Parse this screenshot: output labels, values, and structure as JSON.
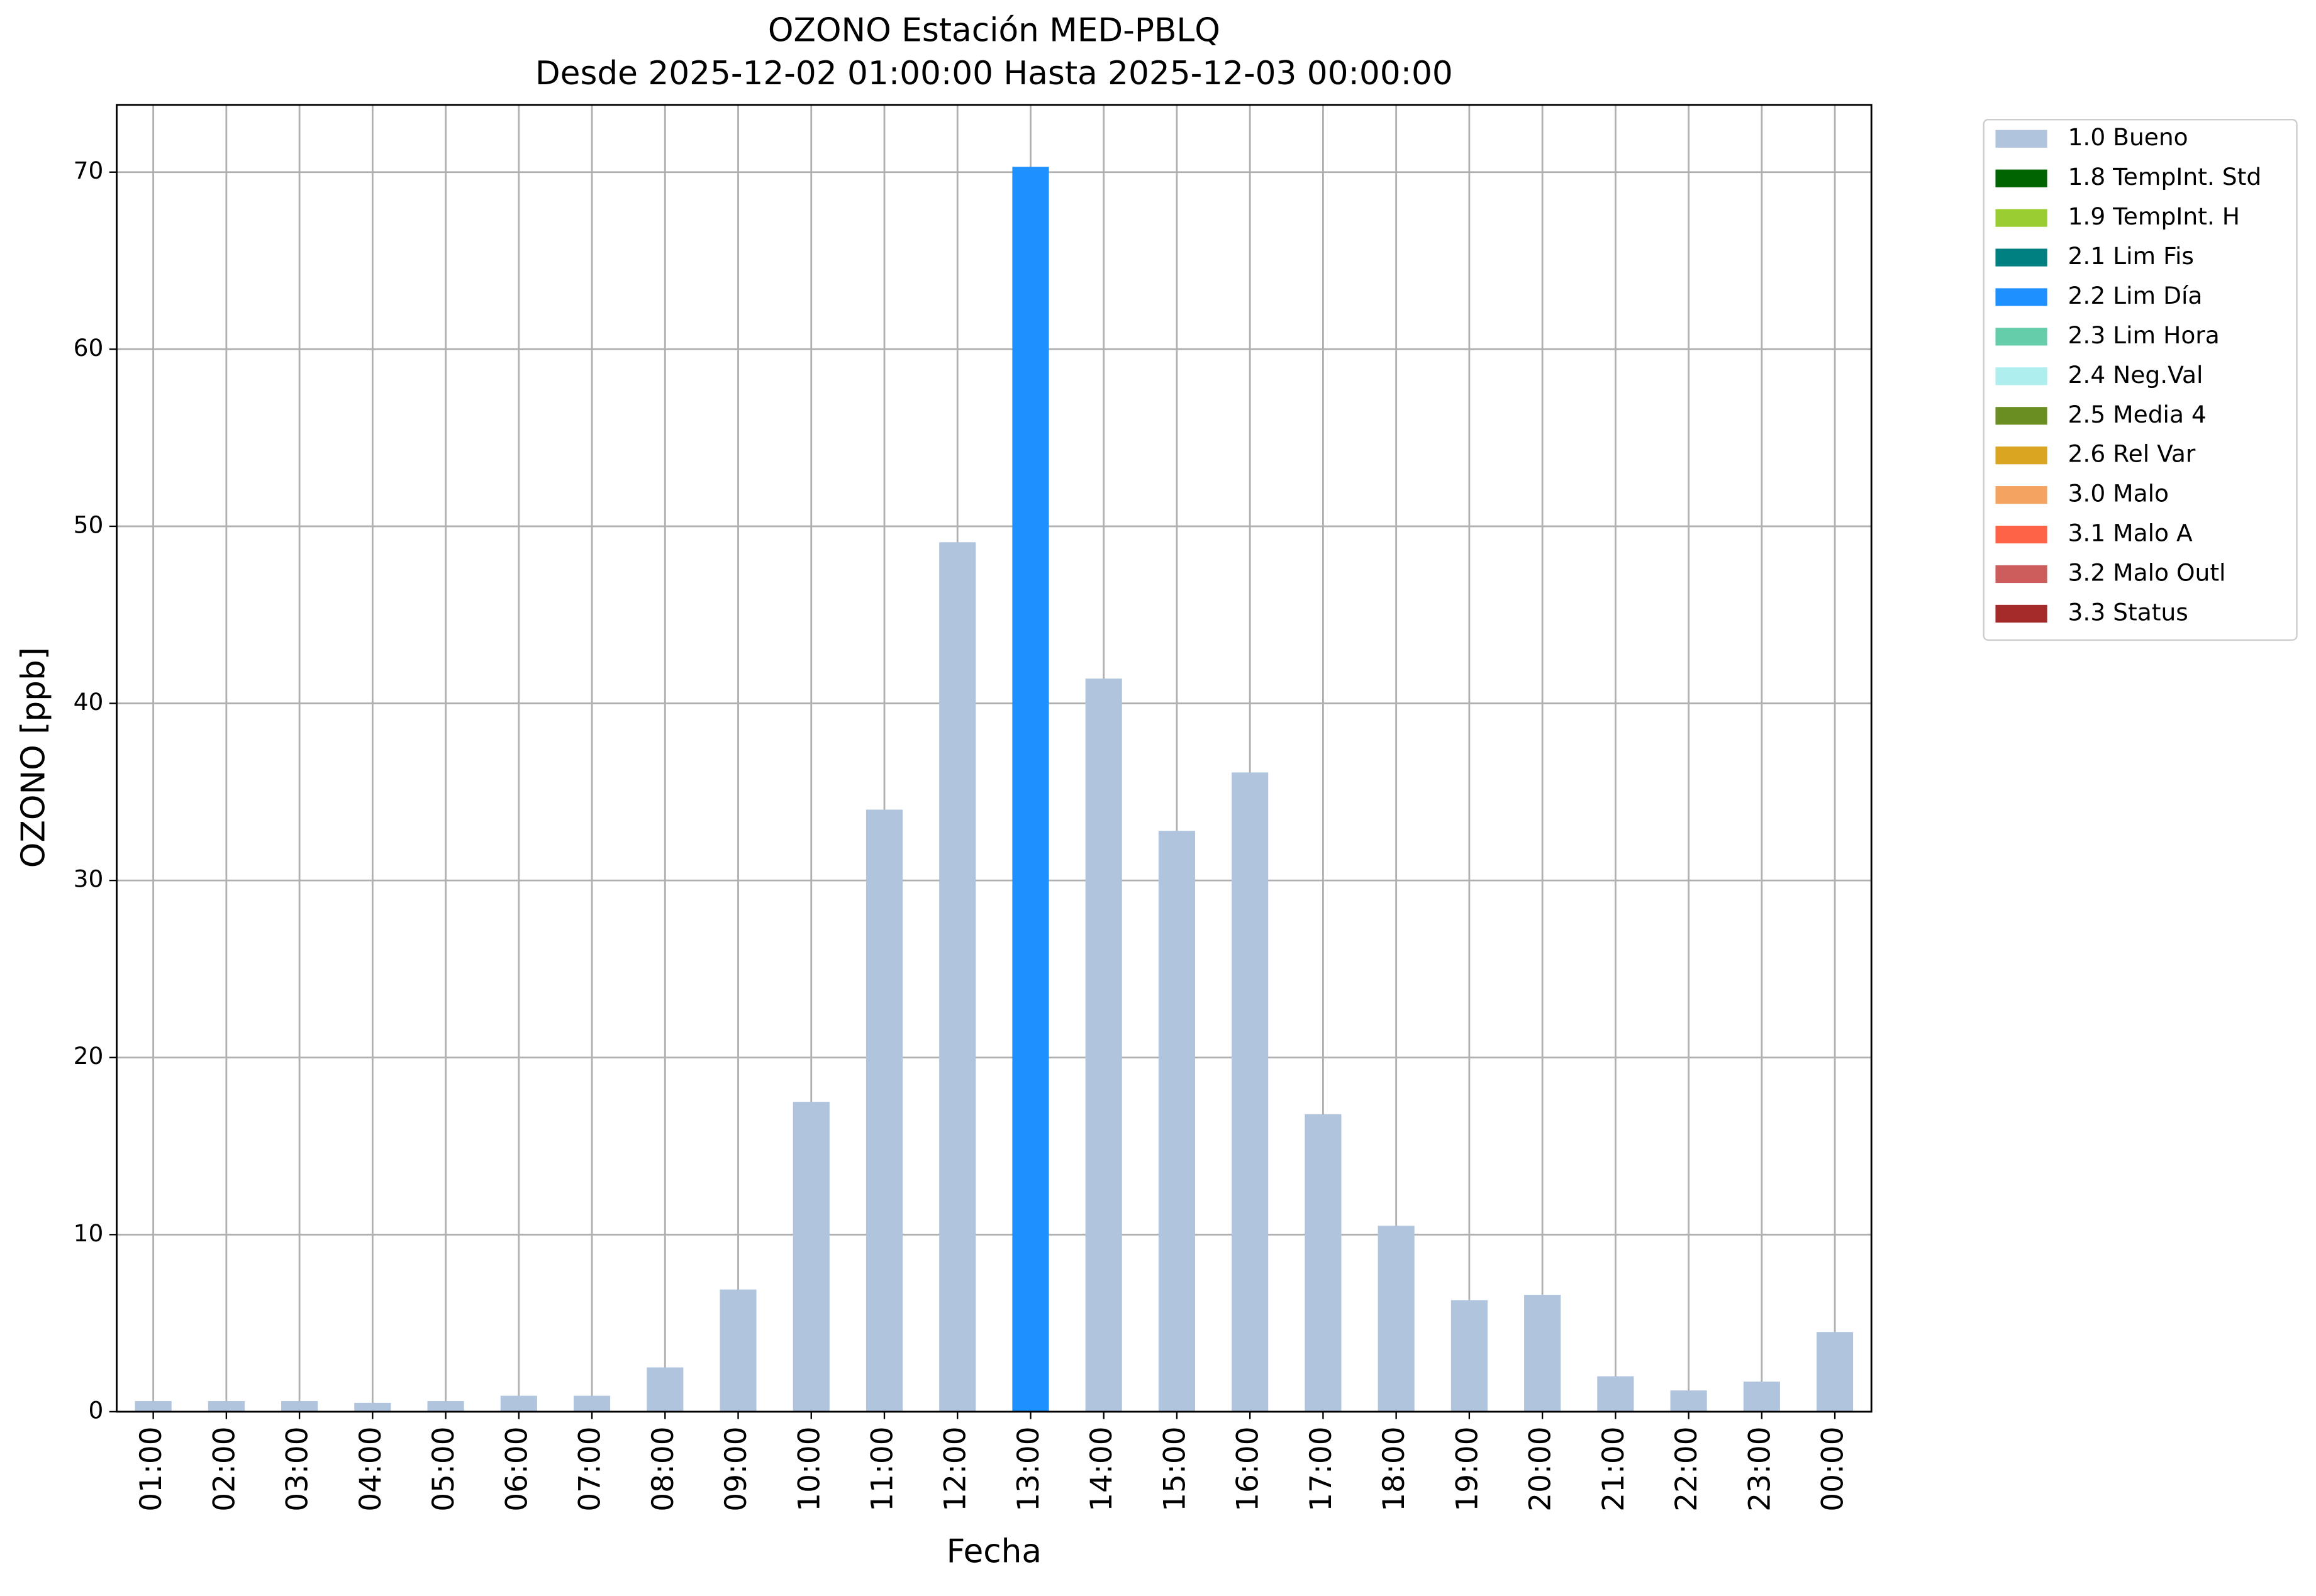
{
  "chart_data": {
    "type": "stacked_bar",
    "title": "OZONO Estación MED-PBLQ",
    "subtitle": "Desde 2025-12-02 01:00:00 Hasta 2025-12-03 00:00:00",
    "xlabel": "Fecha",
    "ylabel": "OZONO [ppb]",
    "categories": [
      "01:00",
      "02:00",
      "03:00",
      "04:00",
      "05:00",
      "06:00",
      "07:00",
      "08:00",
      "09:00",
      "10:00",
      "11:00",
      "12:00",
      "13:00",
      "14:00",
      "15:00",
      "16:00",
      "17:00",
      "18:00",
      "19:00",
      "20:00",
      "21:00",
      "22:00",
      "23:00",
      "00:00"
    ],
    "series": [
      {
        "name": "1.0 Bueno",
        "color": "#b0c4de",
        "values": [
          0.6,
          0.6,
          0.6,
          0.5,
          0.6,
          0.9,
          0.9,
          2.5,
          6.9,
          17.5,
          34.0,
          49.1,
          null,
          41.4,
          32.8,
          36.1,
          16.8,
          10.5,
          6.3,
          6.6,
          2.0,
          1.2,
          1.7,
          4.5
        ]
      },
      {
        "name": "1.8 TempInt. Std",
        "color": "#006400",
        "values": [
          null,
          null,
          null,
          null,
          null,
          null,
          null,
          null,
          null,
          null,
          null,
          null,
          null,
          null,
          null,
          null,
          null,
          null,
          null,
          null,
          null,
          null,
          null,
          null
        ]
      },
      {
        "name": "1.9 TempInt. H",
        "color": "#9acd32",
        "values": [
          null,
          null,
          null,
          null,
          null,
          null,
          null,
          null,
          null,
          null,
          null,
          null,
          null,
          null,
          null,
          null,
          null,
          null,
          null,
          null,
          null,
          null,
          null,
          null
        ]
      },
      {
        "name": "2.1 Lim Fis",
        "color": "#008080",
        "values": [
          null,
          null,
          null,
          null,
          null,
          null,
          null,
          null,
          null,
          null,
          null,
          null,
          null,
          null,
          null,
          null,
          null,
          null,
          null,
          null,
          null,
          null,
          null,
          null
        ]
      },
      {
        "name": "2.2 Lim Día",
        "color": "#1e90ff",
        "values": [
          null,
          null,
          null,
          null,
          null,
          null,
          null,
          null,
          null,
          null,
          null,
          null,
          70.3,
          null,
          null,
          null,
          null,
          null,
          null,
          null,
          null,
          null,
          null,
          null
        ]
      },
      {
        "name": "2.3 Lim Hora",
        "color": "#66cdaa",
        "values": [
          null,
          null,
          null,
          null,
          null,
          null,
          null,
          null,
          null,
          null,
          null,
          null,
          null,
          null,
          null,
          null,
          null,
          null,
          null,
          null,
          null,
          null,
          null,
          null
        ]
      },
      {
        "name": "2.4 Neg.Val",
        "color": "#afeeee",
        "values": [
          null,
          null,
          null,
          null,
          null,
          null,
          null,
          null,
          null,
          null,
          null,
          null,
          null,
          null,
          null,
          null,
          null,
          null,
          null,
          null,
          null,
          null,
          null,
          null
        ]
      },
      {
        "name": "2.5 Media 4",
        "color": "#6b8e23",
        "values": [
          null,
          null,
          null,
          null,
          null,
          null,
          null,
          null,
          null,
          null,
          null,
          null,
          null,
          null,
          null,
          null,
          null,
          null,
          null,
          null,
          null,
          null,
          null,
          null
        ]
      },
      {
        "name": "2.6 Rel Var",
        "color": "#daa520",
        "values": [
          null,
          null,
          null,
          null,
          null,
          null,
          null,
          null,
          null,
          null,
          null,
          null,
          null,
          null,
          null,
          null,
          null,
          null,
          null,
          null,
          null,
          null,
          null,
          null
        ]
      },
      {
        "name": "3.0 Malo",
        "color": "#f4a460",
        "values": [
          null,
          null,
          null,
          null,
          null,
          null,
          null,
          null,
          null,
          null,
          null,
          null,
          null,
          null,
          null,
          null,
          null,
          null,
          null,
          null,
          null,
          null,
          null,
          null
        ]
      },
      {
        "name": "3.1 Malo A",
        "color": "#ff6347",
        "values": [
          null,
          null,
          null,
          null,
          null,
          null,
          null,
          null,
          null,
          null,
          null,
          null,
          null,
          null,
          null,
          null,
          null,
          null,
          null,
          null,
          null,
          null,
          null,
          null
        ]
      },
      {
        "name": "3.2 Malo Outl",
        "color": "#cd5c5c",
        "values": [
          null,
          null,
          null,
          null,
          null,
          null,
          null,
          null,
          null,
          null,
          null,
          null,
          null,
          null,
          null,
          null,
          null,
          null,
          null,
          null,
          null,
          null,
          null,
          null
        ]
      },
      {
        "name": "3.3 Status",
        "color": "#a52a2a",
        "values": [
          null,
          null,
          null,
          null,
          null,
          null,
          null,
          null,
          null,
          null,
          null,
          null,
          null,
          null,
          null,
          null,
          null,
          null,
          null,
          null,
          null,
          null,
          null,
          null
        ]
      }
    ],
    "ylim": [
      0,
      73.8
    ],
    "yticks": [
      0,
      10,
      20,
      30,
      40,
      50,
      60,
      70
    ],
    "grid": true,
    "legend": "outside-right"
  }
}
